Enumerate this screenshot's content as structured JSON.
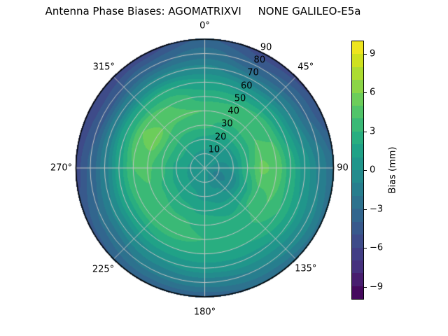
{
  "title": "Antenna Phase Biases: AGOMATRIXVI     NONE GALILEO-E5a",
  "colorbar": {
    "label": "Bias (mm)",
    "tick_values": [
      9,
      6,
      3,
      0,
      -3,
      -6,
      -9
    ],
    "tick_labels": [
      "9",
      "6",
      "3",
      "0",
      "−3",
      "−6",
      "−9"
    ],
    "vmin": -10,
    "vmax": 10
  },
  "chart_data": {
    "type": "heatmap",
    "projection": "polar",
    "title": "Antenna Phase Biases: AGOMATRIXVI     NONE GALILEO-E5a",
    "colormap": "viridis",
    "value_label": "Bias (mm)",
    "vmin": -10,
    "vmax": 10,
    "level_step_mm": 1,
    "angular_tick_labels": [
      "0°",
      "45°",
      "90",
      "135°",
      "180°",
      "225°",
      "270°",
      "315°"
    ],
    "angular_tick_deg": [
      0,
      45,
      90,
      135,
      180,
      225,
      270,
      315
    ],
    "radial_tick_labels": [
      "10",
      "20",
      "30",
      "40",
      "50",
      "60",
      "70",
      "80",
      "90"
    ],
    "radial_tick_values": [
      10,
      20,
      30,
      40,
      50,
      60,
      70,
      80,
      90
    ],
    "azimuth_deg": [
      0,
      30,
      60,
      90,
      120,
      150,
      180,
      210,
      240,
      270,
      300,
      330
    ],
    "zenith_deg": [
      0,
      10,
      20,
      30,
      40,
      50,
      60,
      70,
      80,
      90
    ],
    "bias_mm": [
      [
        0.3,
        0.8,
        1.8,
        3.2,
        4.0,
        2.6,
        1.2,
        -0.8,
        -2.5,
        -3.8
      ],
      [
        0.3,
        0.6,
        1.2,
        2.5,
        3.5,
        3.0,
        0.8,
        -1.8,
        -4.0,
        -5.5
      ],
      [
        0.3,
        0.2,
        0.8,
        2.5,
        4.0,
        3.8,
        1.5,
        -1.0,
        -3.2,
        -5.0
      ],
      [
        0.3,
        -0.8,
        0.2,
        3.0,
        5.2,
        4.8,
        2.5,
        0.5,
        -1.2,
        -2.8
      ],
      [
        0.3,
        -1.4,
        -0.8,
        1.5,
        3.5,
        4.0,
        3.0,
        1.2,
        -0.5,
        -2.2
      ],
      [
        0.3,
        -0.4,
        0.2,
        1.2,
        2.2,
        2.5,
        2.0,
        0.8,
        -1.0,
        -2.8
      ],
      [
        0.3,
        0.4,
        0.8,
        1.8,
        2.8,
        3.0,
        2.0,
        0.5,
        -1.5,
        -3.5
      ],
      [
        0.3,
        0.6,
        1.2,
        2.2,
        3.2,
        3.5,
        2.0,
        0.0,
        -1.8,
        -3.6
      ],
      [
        0.3,
        0.8,
        1.6,
        2.8,
        3.8,
        3.5,
        1.5,
        -0.8,
        -2.8,
        -4.2
      ],
      [
        0.3,
        0.9,
        1.8,
        3.2,
        4.2,
        4.0,
        1.5,
        -1.5,
        -3.8,
        -5.4
      ],
      [
        0.3,
        1.0,
        2.2,
        3.8,
        5.5,
        5.0,
        2.0,
        -1.5,
        -4.5,
        -6.0
      ],
      [
        0.3,
        0.9,
        2.0,
        3.2,
        4.2,
        4.0,
        2.2,
        -0.8,
        -3.5,
        -5.5
      ]
    ],
    "palette": [
      "#450a5d",
      "#481e6f",
      "#46317e",
      "#423e85",
      "#3e4b89",
      "#38598c",
      "#32668e",
      "#2d728e",
      "#277e8e",
      "#238b8d",
      "#20968b",
      "#20a287",
      "#29ae80",
      "#3ab976",
      "#51c469",
      "#6ccd5a",
      "#8bd547",
      "#acdc31",
      "#cee11f",
      "#eee51f"
    ],
    "grid_color": "#c4c4c4",
    "rim_color": "#000000",
    "background_color": "#ffffff",
    "legend_position": "right"
  }
}
